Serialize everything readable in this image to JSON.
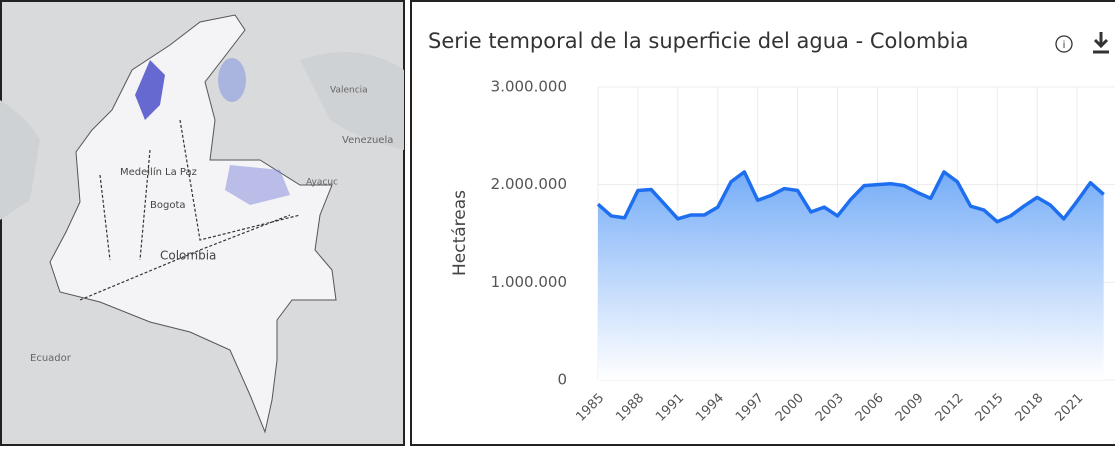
{
  "map": {
    "labels": [
      "Medellín",
      "La Paz",
      "Bogota",
      "Colombia",
      "Ecuador",
      "Venezuela",
      "Valencia",
      "Ayacuc"
    ]
  },
  "chart_data": {
    "type": "area",
    "title": "Serie temporal de la superficie del agua - Colombia",
    "y_label": "Hectáreas",
    "x": [
      1985,
      1986,
      1987,
      1988,
      1989,
      1990,
      1991,
      1992,
      1993,
      1994,
      1995,
      1996,
      1997,
      1998,
      1999,
      2000,
      2001,
      2002,
      2003,
      2004,
      2005,
      2006,
      2007,
      2008,
      2009,
      2010,
      2011,
      2012,
      2013,
      2014,
      2015,
      2016,
      2017,
      2018,
      2019,
      2020,
      2021,
      2022,
      2023
    ],
    "series": [
      {
        "name": "Hectáreas",
        "color": "#1e6ff0",
        "values": [
          1800000,
          1680000,
          1660000,
          1940000,
          1950000,
          1800000,
          1650000,
          1690000,
          1690000,
          1770000,
          2030000,
          2130000,
          1840000,
          1890000,
          1960000,
          1940000,
          1720000,
          1770000,
          1680000,
          1850000,
          1990000,
          2000000,
          2010000,
          1990000,
          1920000,
          1860000,
          2130000,
          2030000,
          1780000,
          1740000,
          1620000,
          1680000,
          1780000,
          1870000,
          1790000,
          1650000,
          1830000,
          2020000,
          1900000
        ]
      }
    ],
    "xlim": [
      1985,
      2024
    ],
    "xticks": [
      1985,
      1988,
      1991,
      1994,
      1997,
      2000,
      2003,
      2006,
      2009,
      2012,
      2015,
      2018,
      2021
    ],
    "ylim": [
      0,
      3000000
    ],
    "yticks": [
      {
        "value": 0,
        "label": "0"
      },
      {
        "value": 1000000,
        "label": "1.000.000"
      },
      {
        "value": 2000000,
        "label": "2.000.000"
      },
      {
        "value": 3000000,
        "label": "3.000.000"
      }
    ],
    "grid": true
  }
}
